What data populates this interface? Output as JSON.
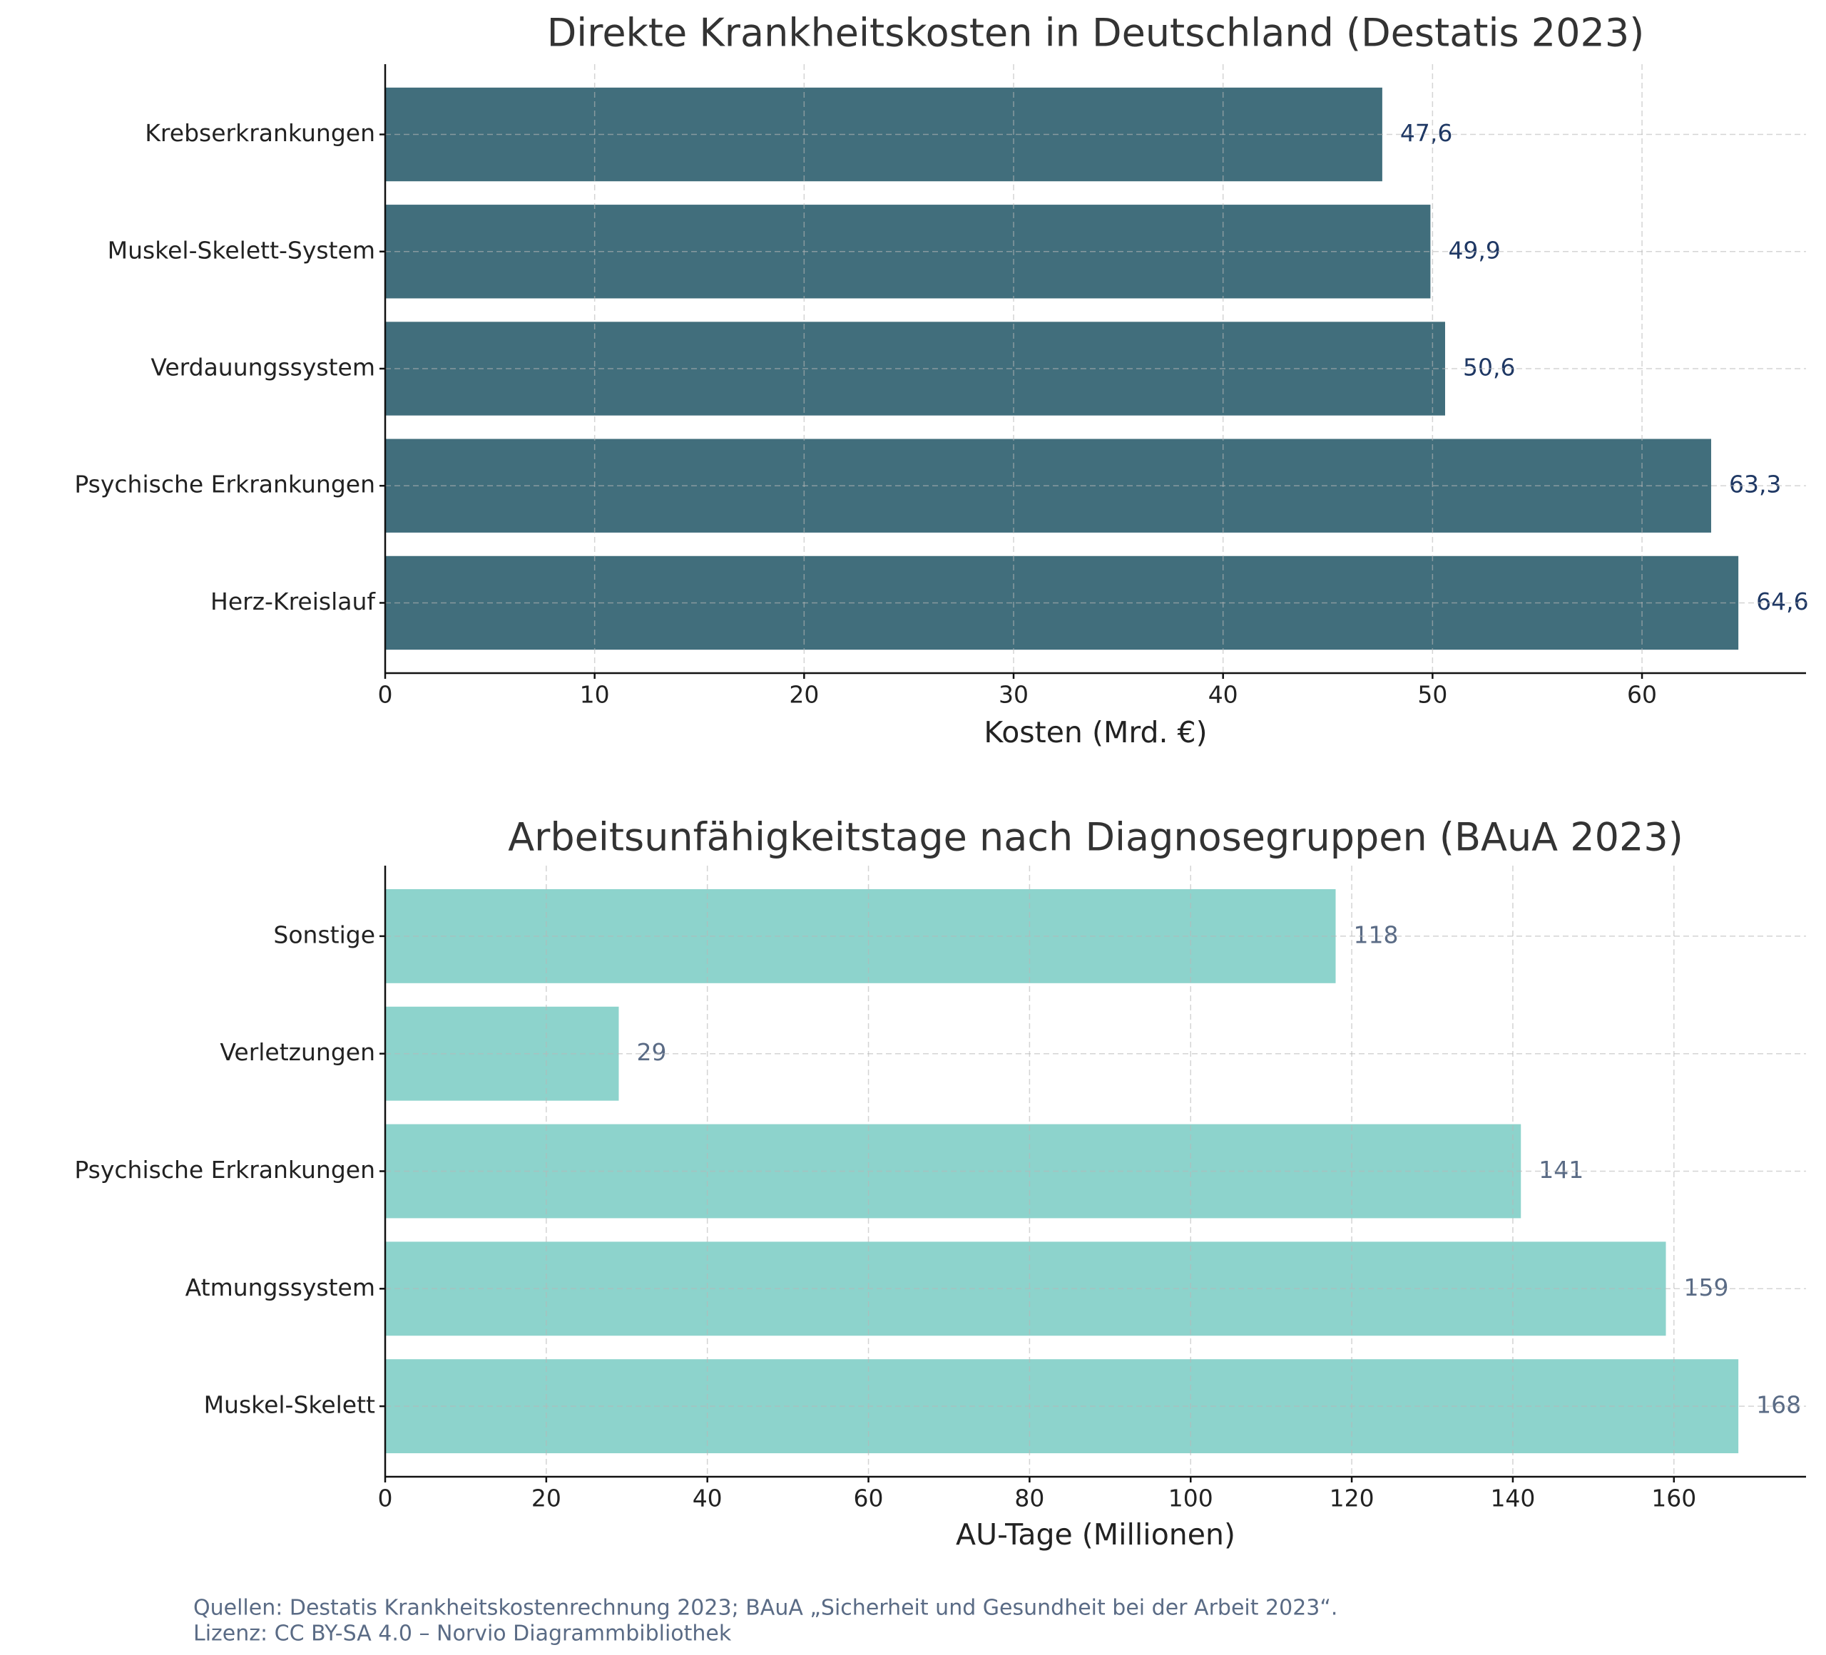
{
  "chart_data": [
    {
      "type": "barh",
      "title": "Direkte Krankheitskosten in Deutschland (Destatis 2023)",
      "x_label": "Kosten (Mrd. €)",
      "categories": [
        "Krebserkrankungen",
        "Muskel-Skelett-System",
        "Verdauungssystem",
        "Psychische Erkrankungen",
        "Herz-Kreislauf"
      ],
      "values": [
        47.6,
        49.9,
        50.6,
        63.3,
        64.6
      ],
      "value_labels": [
        "47,6",
        "49,9",
        "50,6",
        "63,3",
        "64,6"
      ],
      "color": "#416e7c",
      "label_color": "#1f3864",
      "xlim": [
        0,
        67.83
      ],
      "xticks": [
        0,
        10,
        20,
        30,
        40,
        50,
        60
      ],
      "grid": true
    },
    {
      "type": "barh",
      "title": "Arbeitsunfähigkeitstage nach Diagnosegruppen (BAuA 2023)",
      "x_label": "AU-Tage (Millionen)",
      "categories": [
        "Sonstige",
        "Verletzungen",
        "Psychische Erkrankungen",
        "Atmungssystem",
        "Muskel-Skelett"
      ],
      "values": [
        118,
        29,
        141,
        159,
        168
      ],
      "color": "#8dd3cc",
      "label_color": "#5a6b85",
      "xlim": [
        0,
        176.4
      ],
      "xticks": [
        0,
        20,
        40,
        60,
        80,
        100,
        120,
        140,
        160
      ],
      "grid": true
    }
  ],
  "footer": {
    "lines": [
      "Quellen: Destatis Krankheitskostenrechnung 2023; BAuA „Sicherheit und Gesundheit bei der Arbeit 2023“.",
      "Lizenz: CC BY-SA 4.0 – Norvio Diagrammbibliothek"
    ]
  }
}
